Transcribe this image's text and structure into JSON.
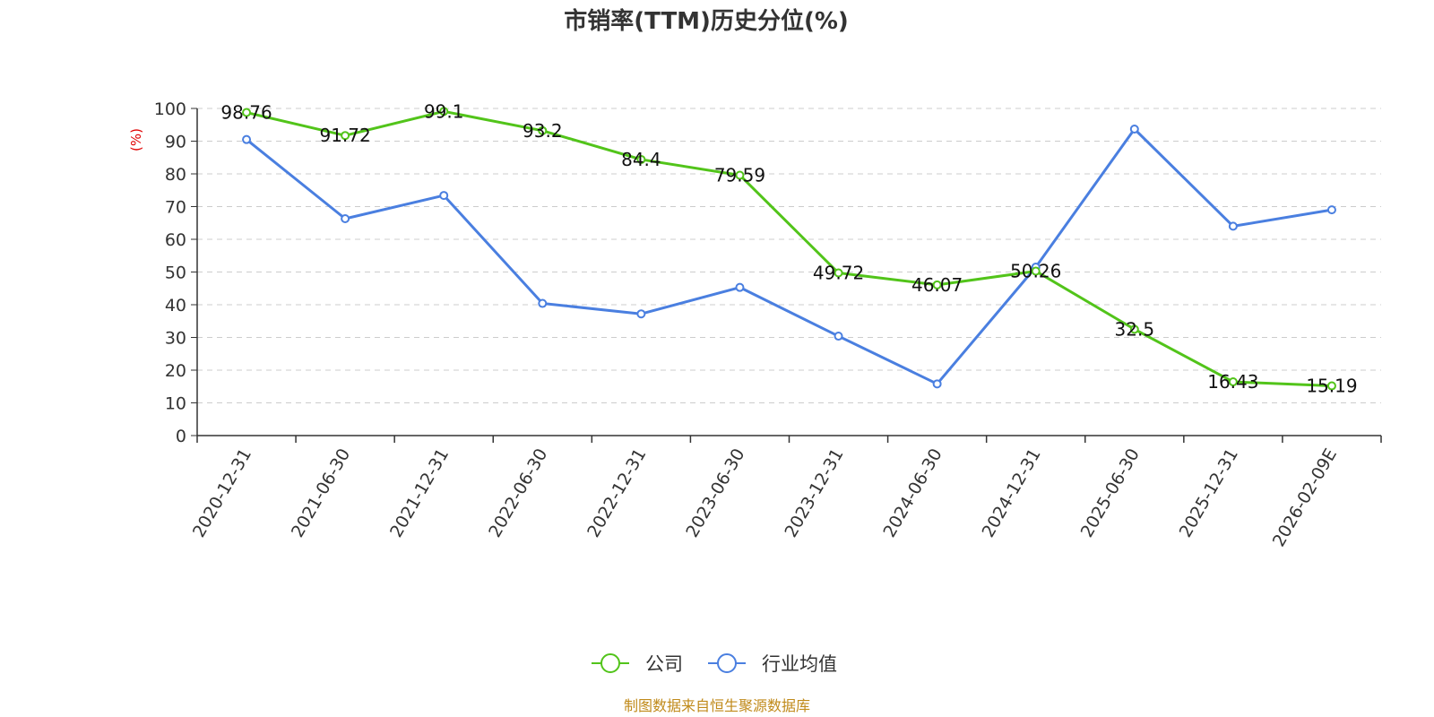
{
  "colors": {
    "company": "#52c41a",
    "industry": "#4a7fe0",
    "ylabel": "#e00000",
    "source": "#c08a1a",
    "grid": "#cccccc",
    "axis": "#333333"
  },
  "chart_data": {
    "type": "line",
    "title": "市销率(TTM)历史分位(%)",
    "ylabel": "(%)",
    "ylim": [
      0,
      100
    ],
    "yticks": [
      0,
      10,
      20,
      30,
      40,
      50,
      60,
      70,
      80,
      90,
      100
    ],
    "grid": true,
    "legend_position": "bottom-center",
    "categories": [
      "2020-12-31",
      "2021-06-30",
      "2021-12-31",
      "2022-06-30",
      "2022-12-31",
      "2023-06-30",
      "2023-12-31",
      "2024-06-30",
      "2024-12-31",
      "2025-06-30",
      "2025-12-31",
      "2026-02-09E"
    ],
    "series": [
      {
        "name": "公司",
        "values": [
          98.76,
          91.72,
          99.1,
          93.2,
          84.4,
          79.59,
          49.72,
          46.07,
          50.26,
          32.5,
          16.43,
          15.19
        ],
        "labels": [
          "98.76",
          "91.72",
          "99.1",
          "93.2",
          "84.4",
          "79.59",
          "49.72",
          "46.07",
          "50.26",
          "32.5",
          "16.43",
          "15.19"
        ]
      },
      {
        "name": "行业均值",
        "values": [
          90.5,
          66.3,
          73.4,
          40.4,
          37.2,
          45.3,
          30.4,
          15.8,
          51.5,
          93.7,
          64.0,
          69.0
        ]
      }
    ]
  },
  "source_text": "制图数据来自恒生聚源数据库"
}
